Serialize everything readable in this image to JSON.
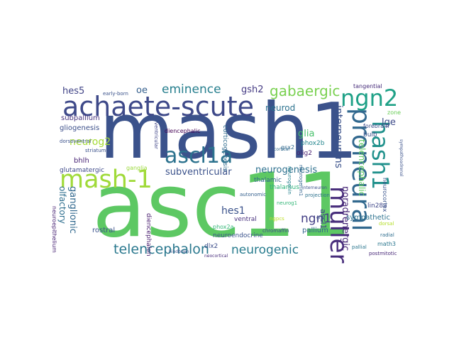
{
  "cloud": {
    "words": [
      {
        "text": "asc11",
        "color": "#5dc863"
      },
      {
        "text": "mash1",
        "color": "#3b528b"
      },
      {
        "text": "achaete-scute",
        "color": "#3e4989"
      },
      {
        "text": "mash-1",
        "color": "#a0da39"
      },
      {
        "text": "ascl1a",
        "color": "#2c728e"
      },
      {
        "text": "proneural",
        "color": "#31688e"
      },
      {
        "text": "muller",
        "color": "#472d7b"
      },
      {
        "text": "ngn2",
        "color": "#1fa187"
      },
      {
        "text": "hash1",
        "color": "#21918c"
      },
      {
        "text": "telencephalon",
        "color": "#2a788e"
      },
      {
        "text": "neurogenic",
        "color": "#287c8e"
      },
      {
        "text": "eminence",
        "color": "#277f8e"
      },
      {
        "text": "gabaergic",
        "color": "#7ad151"
      },
      {
        "text": "subventricular",
        "color": "#3b528b"
      },
      {
        "text": "neurogenesis",
        "color": "#2d708e"
      },
      {
        "text": "interneurons",
        "color": "#3b528b"
      },
      {
        "text": "noradrenergic",
        "color": "#482878"
      },
      {
        "text": "ngn1",
        "color": "#433e85"
      },
      {
        "text": "hes1",
        "color": "#3b528b"
      },
      {
        "text": "neurog2",
        "color": "#a5db36"
      },
      {
        "text": "gsh2",
        "color": "#443a83"
      },
      {
        "text": "oe",
        "color": "#35608d"
      },
      {
        "text": "hes5",
        "color": "#414487"
      },
      {
        "text": "ganglionic",
        "color": "#31688e"
      },
      {
        "text": "olfactory",
        "color": "#2e6e8e"
      },
      {
        "text": "glia",
        "color": "#4ac16d"
      },
      {
        "text": "lge",
        "color": "#3e4a89"
      },
      {
        "text": "neurod",
        "color": "#2c728e"
      },
      {
        "text": "telencephalic",
        "color": "#5ec962"
      },
      {
        "text": "bhlh",
        "color": "#482475"
      },
      {
        "text": "gliogenesis",
        "color": "#3c4f8a"
      },
      {
        "text": "subpallium",
        "color": "#46327e"
      },
      {
        "text": "glutamatergic",
        "color": "#3e4989"
      },
      {
        "text": "ascl1",
        "color": "#414487"
      },
      {
        "text": "rostral",
        "color": "#3b528b"
      },
      {
        "text": "pallium",
        "color": "#33638d"
      },
      {
        "text": "sympathetic",
        "color": "#2c728e"
      },
      {
        "text": "thalamic",
        "color": "#32658e"
      },
      {
        "text": "thalamus",
        "color": "#2fb47c"
      },
      {
        "text": "diencephalon",
        "color": "#481c6e"
      },
      {
        "text": "neuroendocrine",
        "color": "#3b528b"
      },
      {
        "text": "dlx2",
        "color": "#3d4e8a"
      },
      {
        "text": "lin28a",
        "color": "#3f4788"
      },
      {
        "text": "math3",
        "color": "#2a768e"
      },
      {
        "text": "tangential",
        "color": "#472c7a"
      },
      {
        "text": "bulb",
        "color": "#3b518b"
      },
      {
        "text": "zone",
        "color": "#6ccd5a"
      },
      {
        "text": "phox2b",
        "color": "#24868e"
      },
      {
        "text": "olig2",
        "color": "#481f70"
      },
      {
        "text": "gsx2",
        "color": "#30698e"
      },
      {
        "text": "corticogenesis",
        "color": "#2f6b8e"
      },
      {
        "text": "ganglia",
        "color": "#9bd93c"
      },
      {
        "text": "forebrain",
        "color": "#3d4d8a"
      },
      {
        "text": "neuroepithelium",
        "color": "#482374"
      },
      {
        "text": "diencephalic",
        "color": "#440154"
      },
      {
        "text": "phox2a",
        "color": "#35b779"
      },
      {
        "text": "ventral",
        "color": "#472f7d"
      },
      {
        "text": "neurocortex",
        "color": "#3a548c"
      },
      {
        "text": "striatum",
        "color": "#3b528b"
      },
      {
        "text": "early-born",
        "color": "#3b528b"
      },
      {
        "text": "ventricular",
        "color": "#404588"
      },
      {
        "text": "autonomic",
        "color": "#34608d"
      },
      {
        "text": "neurogenin",
        "color": "#26818e"
      },
      {
        "text": "ngpcs",
        "color": "#bddf26"
      },
      {
        "text": "dorsoventral",
        "color": "#3b528b"
      },
      {
        "text": "projection",
        "color": "#2c718e"
      },
      {
        "text": "neurog1",
        "color": "#35b779"
      },
      {
        "text": "chromaffin",
        "color": "#3f4889"
      },
      {
        "text": "neurogenin1",
        "color": "#32658e"
      },
      {
        "text": "postmitotic",
        "color": "#482878"
      },
      {
        "text": "radial",
        "color": "#2e6d8e"
      },
      {
        "text": "dorsal",
        "color": "#b5de2b"
      },
      {
        "text": "pallial",
        "color": "#2a768e"
      },
      {
        "text": "hindbrain",
        "color": "#3b528b"
      },
      {
        "text": "neocortical",
        "color": "#472c7a"
      },
      {
        "text": "sympathoadrenal",
        "color": "#3b528b"
      },
      {
        "text": "interneuron",
        "color": "#3b528b"
      },
      {
        "text": "glial",
        "color": "#3b528b"
      },
      {
        "text": "cortical",
        "color": "#31688e"
      },
      {
        "text": "neurogenesis",
        "color": "#2a788e"
      }
    ]
  }
}
